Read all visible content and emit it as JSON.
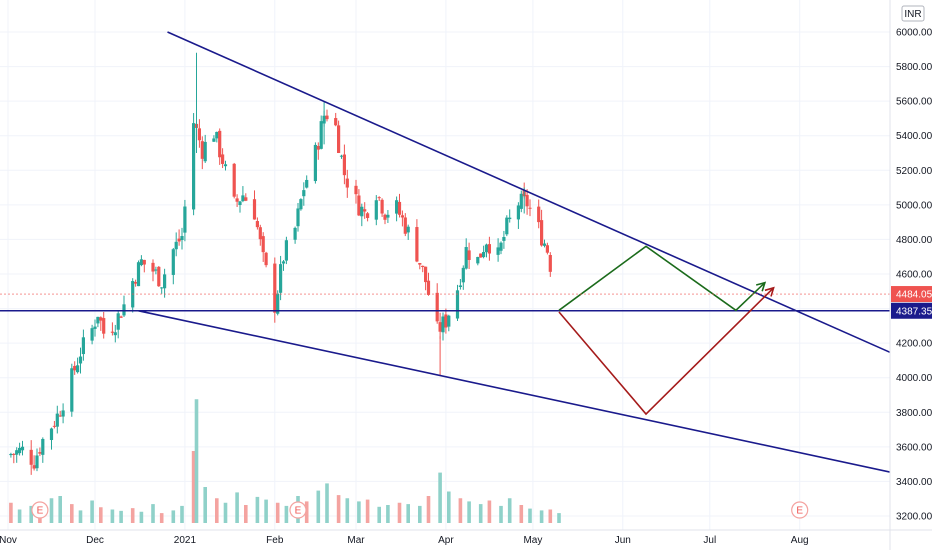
{
  "currency": "INR",
  "colors": {
    "up": "#26a69a",
    "down": "#ef5350",
    "trendline": "#1a1a8c",
    "green_path": "#1b6b1b",
    "red_path": "#a51b1b",
    "volume_up": "#8fd1c9",
    "volume_down": "#f4a3a0",
    "grid": "#f0f3fa"
  },
  "chart_data": {
    "type": "candlestick",
    "ylim": [
      3150,
      6100
    ],
    "y_ticks": [
      3200,
      3400,
      3600,
      3800,
      4000,
      4200,
      4400,
      4600,
      4800,
      5000,
      5200,
      5400,
      5600,
      5800,
      6000
    ],
    "y_tick_labels": [
      "3200.00",
      "3400.00",
      "3600.00",
      "3800.00",
      "4000.00",
      "4200.00",
      "4400.00",
      "4600.00",
      "4800.00",
      "5000.00",
      "5200.00",
      "5400.00",
      "5600.00",
      "5800.00",
      "6000.00"
    ],
    "x_ticks": [
      {
        "label": "Nov",
        "date": "2020-11-01"
      },
      {
        "label": "Dec",
        "date": "2020-12-01"
      },
      {
        "label": "2021",
        "date": "2021-01-01"
      },
      {
        "label": "Feb",
        "date": "2021-02-01"
      },
      {
        "label": "Mar",
        "date": "2021-03-01"
      },
      {
        "label": "Apr",
        "date": "2021-04-01"
      },
      {
        "label": "May",
        "date": "2021-05-01"
      },
      {
        "label": "Jun",
        "date": "2021-06-01"
      },
      {
        "label": "Jul",
        "date": "2021-07-01"
      },
      {
        "label": "Aug",
        "date": "2021-08-01"
      }
    ],
    "price_labels": [
      {
        "value": 4484.05,
        "text": "4484.05",
        "style": "last"
      },
      {
        "value": 4387.35,
        "text": "4387.35",
        "style": "line"
      }
    ],
    "close_path": [
      [
        "2020-10-31",
        3550
      ],
      [
        "2020-11-06",
        3580
      ],
      [
        "2020-11-10",
        3520
      ],
      [
        "2020-11-13",
        3640
      ],
      [
        "2020-11-18",
        3780
      ],
      [
        "2020-11-22",
        3950
      ],
      [
        "2020-11-26",
        4150
      ],
      [
        "2020-11-30",
        4280
      ],
      [
        "2020-12-02",
        4380
      ],
      [
        "2020-12-04",
        4260
      ],
      [
        "2020-12-08",
        4320
      ],
      [
        "2020-12-11",
        4420
      ],
      [
        "2020-12-14",
        4560
      ],
      [
        "2020-12-17",
        4670
      ],
      [
        "2020-12-21",
        4620
      ],
      [
        "2020-12-24",
        4560
      ],
      [
        "2020-12-28",
        4740
      ],
      [
        "2020-12-31",
        4820
      ],
      [
        "2021-01-04",
        5480
      ],
      [
        "2021-01-07",
        5320
      ],
      [
        "2021-01-11",
        5420
      ],
      [
        "2021-01-14",
        5260
      ],
      [
        "2021-01-18",
        5000
      ],
      [
        "2021-01-21",
        5060
      ],
      [
        "2021-01-25",
        4960
      ],
      [
        "2021-01-28",
        4680
      ],
      [
        "2021-02-01",
        4420
      ],
      [
        "2021-02-04",
        4700
      ],
      [
        "2021-02-08",
        4860
      ],
      [
        "2021-02-11",
        5100
      ],
      [
        "2021-02-15",
        5300
      ],
      [
        "2021-02-18",
        5520
      ],
      [
        "2021-02-21",
        5540
      ],
      [
        "2021-02-25",
        5180
      ],
      [
        "2021-03-01",
        5020
      ],
      [
        "2021-03-04",
        4950
      ],
      [
        "2021-03-08",
        5080
      ],
      [
        "2021-03-11",
        4960
      ],
      [
        "2021-03-15",
        4980
      ],
      [
        "2021-03-18",
        4880
      ],
      [
        "2021-03-22",
        4720
      ],
      [
        "2021-03-25",
        4560
      ],
      [
        "2021-03-29",
        4270
      ],
      [
        "2021-04-01",
        4330
      ],
      [
        "2021-04-05",
        4520
      ],
      [
        "2021-04-08",
        4740
      ],
      [
        "2021-04-12",
        4680
      ],
      [
        "2021-04-15",
        4800
      ],
      [
        "2021-04-19",
        4700
      ],
      [
        "2021-04-22",
        4870
      ],
      [
        "2021-04-26",
        5010
      ],
      [
        "2021-04-29",
        5010
      ],
      [
        "2021-05-03",
        4860
      ],
      [
        "2021-05-06",
        4740
      ],
      [
        "2021-05-09",
        4484
      ]
    ],
    "volume": [
      [
        "2020-11-02",
        45
      ],
      [
        "2020-11-05",
        30
      ],
      [
        "2020-11-09",
        38
      ],
      [
        "2020-11-12",
        26
      ],
      [
        "2020-11-16",
        55
      ],
      [
        "2020-11-19",
        60
      ],
      [
        "2020-11-23",
        42
      ],
      [
        "2020-11-26",
        28
      ],
      [
        "2020-11-30",
        50
      ],
      [
        "2020-12-03",
        35
      ],
      [
        "2020-12-07",
        30
      ],
      [
        "2020-12-10",
        27
      ],
      [
        "2020-12-14",
        33
      ],
      [
        "2020-12-17",
        25
      ],
      [
        "2020-12-21",
        42
      ],
      [
        "2020-12-24",
        22
      ],
      [
        "2020-12-28",
        28
      ],
      [
        "2020-12-31",
        38
      ],
      [
        "2021-01-04",
        160
      ],
      [
        "2021-01-05",
        275
      ],
      [
        "2021-01-08",
        80
      ],
      [
        "2021-01-12",
        55
      ],
      [
        "2021-01-15",
        45
      ],
      [
        "2021-01-19",
        68
      ],
      [
        "2021-01-22",
        40
      ],
      [
        "2021-01-26",
        58
      ],
      [
        "2021-01-29",
        52
      ],
      [
        "2021-02-02",
        45
      ],
      [
        "2021-02-05",
        38
      ],
      [
        "2021-02-09",
        60
      ],
      [
        "2021-02-12",
        48
      ],
      [
        "2021-02-16",
        72
      ],
      [
        "2021-02-19",
        88
      ],
      [
        "2021-02-23",
        62
      ],
      [
        "2021-02-26",
        55
      ],
      [
        "2021-03-02",
        48
      ],
      [
        "2021-03-05",
        52
      ],
      [
        "2021-03-09",
        36
      ],
      [
        "2021-03-12",
        40
      ],
      [
        "2021-03-16",
        45
      ],
      [
        "2021-03-19",
        42
      ],
      [
        "2021-03-23",
        38
      ],
      [
        "2021-03-26",
        60
      ],
      [
        "2021-03-30",
        112
      ],
      [
        "2021-04-02",
        70
      ],
      [
        "2021-04-06",
        55
      ],
      [
        "2021-04-09",
        48
      ],
      [
        "2021-04-13",
        42
      ],
      [
        "2021-04-16",
        50
      ],
      [
        "2021-04-20",
        38
      ],
      [
        "2021-04-23",
        55
      ],
      [
        "2021-04-27",
        40
      ],
      [
        "2021-04-30",
        32
      ],
      [
        "2021-05-04",
        28
      ],
      [
        "2021-05-07",
        30
      ],
      [
        "2021-05-10",
        22
      ]
    ],
    "annotations": [
      {
        "type": "trendline",
        "name": "upper-trendline",
        "from": [
          "2020-12-26",
          6000
        ],
        "to": [
          "2021-08-25",
          4200
        ],
        "extended": true
      },
      {
        "type": "trendline",
        "name": "lower-trendline",
        "from": [
          "2020-12-16",
          4387
        ],
        "to": [
          "2021-08-25",
          3480
        ],
        "extended": true
      },
      {
        "type": "hline",
        "name": "support-line",
        "value": 4387.35
      },
      {
        "type": "path",
        "name": "projection-green",
        "color": "green",
        "points": [
          [
            "2021-05-10",
            4390
          ],
          [
            "2021-06-09",
            4760
          ],
          [
            "2021-07-10",
            4390
          ],
          [
            "2021-07-20",
            4550
          ]
        ],
        "arrow": true
      },
      {
        "type": "path",
        "name": "projection-red",
        "color": "red",
        "points": [
          [
            "2021-05-10",
            4380
          ],
          [
            "2021-06-09",
            3790
          ],
          [
            "2021-07-23",
            4520
          ]
        ],
        "arrow": true
      }
    ],
    "event_markers": [
      {
        "date": "2020-11-12",
        "text": "E"
      },
      {
        "date": "2021-02-09",
        "text": "E"
      },
      {
        "date": "2021-08-01",
        "text": "E"
      }
    ]
  }
}
